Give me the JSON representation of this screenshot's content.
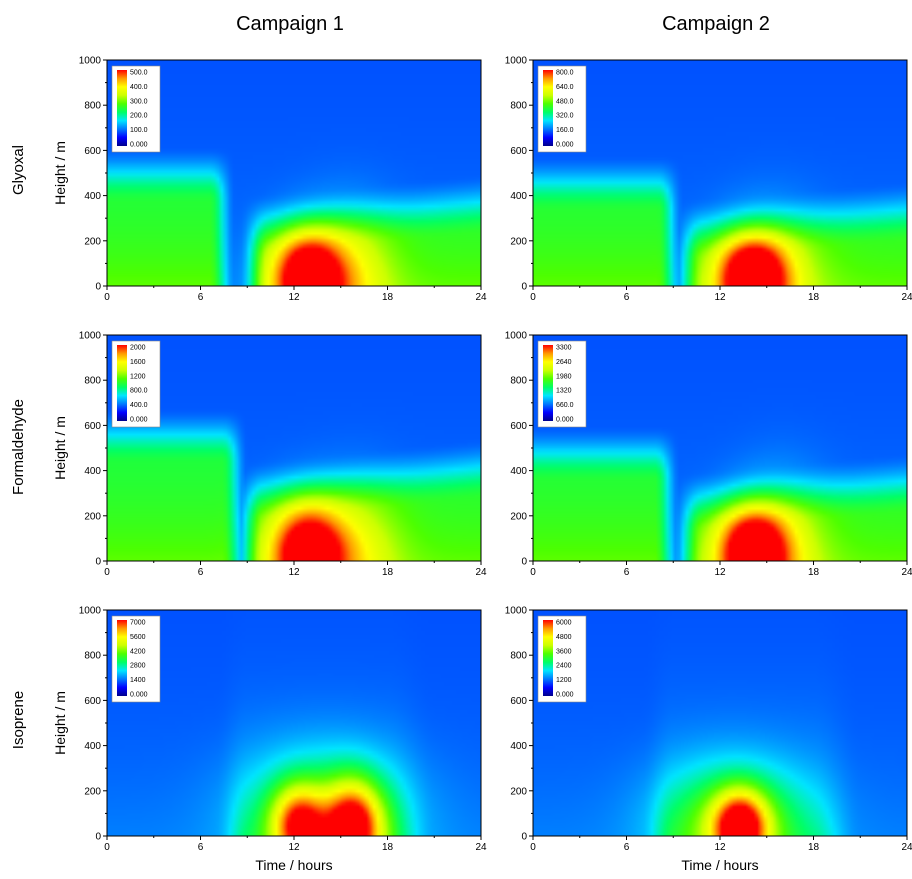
{
  "columns": [
    "Campaign 1",
    "Campaign 2"
  ],
  "rows": [
    "Glyoxal",
    "Formaldehyde",
    "Isoprene"
  ],
  "ylabel": "Height / m",
  "xlabel": "Time / hours",
  "colorscale": [
    "#00008b",
    "#0000ff",
    "#0078ff",
    "#00e5ff",
    "#00ff66",
    "#4dff00",
    "#ccff00",
    "#ffff00",
    "#ff9900",
    "#ff0000"
  ],
  "chart_data": [
    {
      "type": "heatmap",
      "title": "Campaign 1",
      "row": "Glyoxal",
      "xlabel": "",
      "ylabel": "Height / m",
      "x_ticks": [
        0,
        6,
        12,
        18,
        24
      ],
      "y_ticks": [
        0,
        200,
        400,
        600,
        800,
        1000
      ],
      "xlim": [
        0,
        24
      ],
      "ylim": [
        0,
        1000
      ],
      "colorbar_ticks": [
        "500.0",
        "400.0",
        "300.0",
        "200.0",
        "100.0",
        "0.000"
      ],
      "zmax": 500,
      "background": {
        "layer_top": 520,
        "layer_edge": 7.6,
        "transition_end": 9.5,
        "layer_start": 0
      },
      "plumes": [
        {
          "t": 12.8,
          "h": 40,
          "intensity": 1.0,
          "spread_t": 1.6,
          "spread_h": 140
        },
        {
          "t": 15.5,
          "h": 30,
          "intensity": 0.35,
          "spread_t": 2.0,
          "spread_h": 200
        }
      ]
    },
    {
      "type": "heatmap",
      "title": "Campaign 2",
      "row": "Glyoxal",
      "xlabel": "",
      "ylabel": "",
      "x_ticks": [
        0,
        6,
        12,
        18,
        24
      ],
      "y_ticks": [
        0,
        200,
        400,
        600,
        800,
        1000
      ],
      "xlim": [
        0,
        24
      ],
      "ylim": [
        0,
        1000
      ],
      "colorbar_ticks": [
        "800.0",
        "640.0",
        "480.0",
        "320.0",
        "160.0",
        "0.000"
      ],
      "zmax": 800,
      "background": {
        "layer_top": 480,
        "layer_edge": 9.0,
        "transition_end": 10.0,
        "layer_start": 0
      },
      "plumes": [
        {
          "t": 14.0,
          "h": 40,
          "intensity": 1.0,
          "spread_t": 1.6,
          "spread_h": 130
        },
        {
          "t": 15.5,
          "h": 30,
          "intensity": 0.25,
          "spread_t": 2.2,
          "spread_h": 200
        }
      ]
    },
    {
      "type": "heatmap",
      "title": "Campaign 1",
      "row": "Formaldehyde",
      "xlabel": "",
      "ylabel": "Height / m",
      "x_ticks": [
        0,
        6,
        12,
        18,
        24
      ],
      "y_ticks": [
        0,
        200,
        400,
        600,
        800,
        1000
      ],
      "xlim": [
        0,
        24
      ],
      "ylim": [
        0,
        1000
      ],
      "colorbar_ticks": [
        "2000",
        "1600",
        "1200",
        "800.0",
        "400.0",
        "0.000"
      ],
      "zmax": 2000,
      "background": {
        "layer_top": 580,
        "layer_edge": 8.4,
        "transition_end": 9.2,
        "layer_start": 0
      },
      "plumes": [
        {
          "t": 12.8,
          "h": 40,
          "intensity": 1.0,
          "spread_t": 1.7,
          "spread_h": 150
        },
        {
          "t": 16.0,
          "h": 30,
          "intensity": 0.3,
          "spread_t": 2.0,
          "spread_h": 200
        }
      ]
    },
    {
      "type": "heatmap",
      "title": "Campaign 2",
      "row": "Formaldehyde",
      "xlabel": "",
      "ylabel": "",
      "x_ticks": [
        0,
        6,
        12,
        18,
        24
      ],
      "y_ticks": [
        0,
        200,
        400,
        600,
        800,
        1000
      ],
      "xlim": [
        0,
        24
      ],
      "ylim": [
        0,
        1000
      ],
      "colorbar_ticks": [
        "3300",
        "2640",
        "1980",
        "1320",
        "660.0",
        "0.000"
      ],
      "zmax": 3300,
      "background": {
        "layer_top": 500,
        "layer_edge": 8.8,
        "transition_end": 10.0,
        "layer_start": 0
      },
      "plumes": [
        {
          "t": 14.0,
          "h": 40,
          "intensity": 1.0,
          "spread_t": 1.6,
          "spread_h": 140
        },
        {
          "t": 16.0,
          "h": 30,
          "intensity": 0.28,
          "spread_t": 2.0,
          "spread_h": 220
        }
      ]
    },
    {
      "type": "heatmap",
      "title": "Campaign 1",
      "row": "Isoprene",
      "xlabel": "Time / hours",
      "ylabel": "Height / m",
      "x_ticks": [
        0,
        6,
        12,
        18,
        24
      ],
      "y_ticks": [
        0,
        200,
        400,
        600,
        800,
        1000
      ],
      "xlim": [
        0,
        24
      ],
      "ylim": [
        0,
        1000
      ],
      "colorbar_ticks": [
        "7000",
        "5600",
        "4200",
        "2800",
        "1400",
        "0.000"
      ],
      "zmax": 7000,
      "background": {
        "layer_top": 0,
        "layer_edge": 0,
        "transition_end": 0,
        "layer_start": 0
      },
      "plumes": [
        {
          "t": 12.3,
          "h": 50,
          "intensity": 0.85,
          "spread_t": 1.2,
          "spread_h": 120
        },
        {
          "t": 15.8,
          "h": 40,
          "intensity": 1.0,
          "spread_t": 1.3,
          "spread_h": 140
        },
        {
          "t": 14.0,
          "h": 80,
          "intensity": 0.45,
          "spread_t": 3.5,
          "spread_h": 200
        }
      ]
    },
    {
      "type": "heatmap",
      "title": "Campaign 2",
      "row": "Isoprene",
      "xlabel": "Time / hours",
      "ylabel": "",
      "x_ticks": [
        0,
        6,
        12,
        18,
        24
      ],
      "y_ticks": [
        0,
        200,
        400,
        600,
        800,
        1000
      ],
      "xlim": [
        0,
        24
      ],
      "ylim": [
        0,
        1000
      ],
      "colorbar_ticks": [
        "6000",
        "4800",
        "3600",
        "2400",
        "1200",
        "0.000"
      ],
      "zmax": 6000,
      "background": {
        "layer_top": 0,
        "layer_edge": 0,
        "transition_end": 0,
        "layer_start": 0
      },
      "plumes": [
        {
          "t": 13.3,
          "h": 40,
          "intensity": 1.0,
          "spread_t": 1.2,
          "spread_h": 110
        },
        {
          "t": 12.8,
          "h": 60,
          "intensity": 0.5,
          "spread_t": 3.2,
          "spread_h": 180
        }
      ]
    }
  ]
}
